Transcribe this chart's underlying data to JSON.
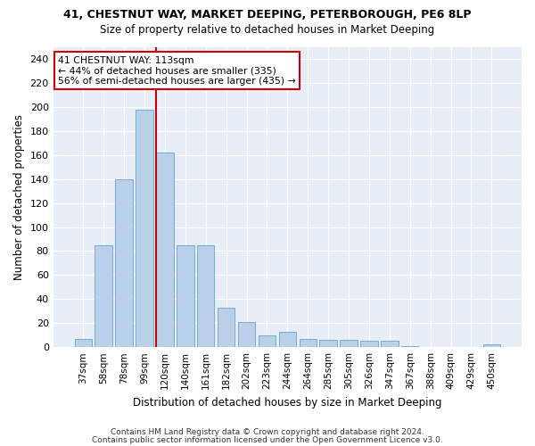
{
  "title1": "41, CHESTNUT WAY, MARKET DEEPING, PETERBOROUGH, PE6 8LP",
  "title2": "Size of property relative to detached houses in Market Deeping",
  "xlabel": "Distribution of detached houses by size in Market Deeping",
  "ylabel": "Number of detached properties",
  "categories": [
    "37sqm",
    "58sqm",
    "78sqm",
    "99sqm",
    "120sqm",
    "140sqm",
    "161sqm",
    "182sqm",
    "202sqm",
    "223sqm",
    "244sqm",
    "264sqm",
    "285sqm",
    "305sqm",
    "326sqm",
    "347sqm",
    "367sqm",
    "388sqm",
    "409sqm",
    "429sqm",
    "450sqm"
  ],
  "values": [
    7,
    85,
    140,
    198,
    162,
    85,
    85,
    33,
    21,
    10,
    13,
    7,
    6,
    6,
    5,
    5,
    1,
    0,
    0,
    0,
    2
  ],
  "bar_color": "#b8d0e8",
  "bar_edge_color": "#7aaad0",
  "vline_color": "#cc0000",
  "annotation_text": "41 CHESTNUT WAY: 113sqm\n← 44% of detached houses are smaller (335)\n56% of semi-detached houses are larger (435) →",
  "annotation_box_color": "#ffffff",
  "annotation_box_edge": "#cc0000",
  "ylim": [
    0,
    250
  ],
  "yticks": [
    0,
    20,
    40,
    60,
    80,
    100,
    120,
    140,
    160,
    180,
    200,
    220,
    240
  ],
  "footer1": "Contains HM Land Registry data © Crown copyright and database right 2024.",
  "footer2": "Contains public sector information licensed under the Open Government Licence v3.0.",
  "background_color": "#ffffff",
  "plot_bg_color": "#e8eef7",
  "grid_color": "#ffffff",
  "vline_x_index": 4
}
